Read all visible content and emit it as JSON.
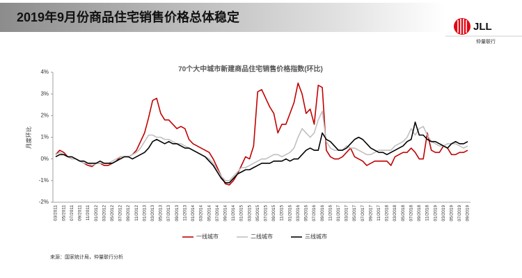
{
  "header": {
    "title": "2019年9月份商品住宅销售价格总体稳定",
    "logo": "JLL",
    "logo_sub": "仲量联行"
  },
  "source": "来源：国家统计局，仲量联行分析",
  "chart_data": {
    "type": "line",
    "title": "70个大中城市新建商品住宅销售价格指数(环比)",
    "y_label": "月度环比",
    "categories": [
      "03/2011",
      null,
      "05/2011",
      null,
      "07/2011",
      null,
      "09/2011",
      null,
      "11/2011",
      null,
      "01/2012",
      null,
      "03/2012",
      null,
      "05/2012",
      null,
      "07/2012",
      null,
      "09/2012",
      null,
      "11/2012",
      null,
      "01/2013",
      null,
      "03/2013",
      null,
      "05/2013",
      null,
      "07/2013",
      null,
      "09/2013",
      null,
      "11/2013",
      null,
      "01/2014",
      null,
      "03/2014",
      null,
      "05/2014",
      null,
      "07/2014",
      null,
      "09/2014",
      null,
      "11/2014",
      null,
      "01/2015",
      null,
      "03/2015",
      null,
      "05/2015",
      null,
      "07/2015",
      null,
      "09/2015",
      null,
      "11/2015",
      null,
      "01/2016",
      null,
      "03/2016",
      null,
      "05/2016",
      null,
      "07/2016",
      null,
      "09/2016",
      null,
      "11/2016",
      null,
      "01/2017",
      null,
      "03/2017",
      null,
      "05/2017",
      null,
      "07/2017",
      null,
      "09/2017",
      null,
      "11/2017",
      null,
      "01/2018",
      null,
      "03/2018",
      null,
      "05/2018",
      null,
      "07/2018",
      null,
      "09/2018",
      null,
      "11/2018",
      null,
      "01/2019",
      null,
      "03/2019",
      null,
      "05/2019",
      null,
      "07/2019",
      null,
      "09/2019"
    ],
    "series": [
      {
        "name": "一线城市",
        "color": "#c00000",
        "values": [
          0.2,
          0.4,
          0.3,
          0.1,
          0.0,
          0.0,
          -0.1,
          -0.2,
          -0.3,
          -0.35,
          -0.2,
          -0.2,
          -0.3,
          -0.3,
          -0.2,
          -0.1,
          0.1,
          0.1,
          0.1,
          0.2,
          0.4,
          0.8,
          1.2,
          1.9,
          2.7,
          2.8,
          2.1,
          1.8,
          1.8,
          1.6,
          1.4,
          1.5,
          1.4,
          0.9,
          0.7,
          0.6,
          0.5,
          0.4,
          0.3,
          0.0,
          -0.4,
          -0.8,
          -1.15,
          -1.2,
          -1.0,
          -0.7,
          -0.3,
          0.1,
          0.0,
          0.6,
          3.1,
          3.2,
          2.8,
          2.4,
          2.1,
          1.2,
          1.6,
          1.6,
          2.1,
          2.6,
          3.5,
          3.0,
          2.1,
          2.3,
          1.6,
          3.4,
          3.3,
          0.4,
          0.1,
          0.0,
          0.0,
          0.1,
          0.3,
          0.5,
          0.1,
          0.0,
          -0.1,
          -0.3,
          -0.2,
          -0.1,
          -0.1,
          -0.1,
          -0.1,
          -0.3,
          0.1,
          0.2,
          0.3,
          0.3,
          0.5,
          0.3,
          0.0,
          0.0,
          1.2,
          0.4,
          0.3,
          0.3,
          0.6,
          0.5,
          0.2,
          0.2,
          0.3,
          0.3,
          0.4
        ]
      },
      {
        "name": "二线城市",
        "color": "#bfbfbf",
        "values": [
          0.2,
          0.3,
          0.2,
          0.1,
          0.0,
          0.0,
          -0.1,
          -0.2,
          -0.2,
          -0.3,
          -0.2,
          -0.2,
          -0.2,
          -0.2,
          -0.1,
          0.0,
          0.1,
          0.1,
          0.1,
          0.2,
          0.3,
          0.5,
          0.8,
          1.1,
          1.1,
          1.0,
          1.0,
          0.9,
          0.9,
          0.8,
          0.7,
          0.7,
          0.6,
          0.5,
          0.4,
          0.3,
          0.2,
          0.1,
          0.0,
          -0.2,
          -0.5,
          -0.8,
          -1.0,
          -1.0,
          -0.8,
          -0.6,
          -0.4,
          -0.4,
          -0.3,
          -0.2,
          -0.1,
          0.0,
          0.0,
          0.1,
          0.2,
          0.2,
          0.1,
          0.2,
          0.3,
          0.5,
          1.0,
          1.4,
          1.2,
          1.0,
          1.2,
          1.8,
          2.2,
          0.8,
          0.5,
          0.4,
          0.4,
          0.4,
          0.6,
          0.5,
          0.5,
          0.4,
          0.3,
          0.2,
          0.2,
          0.3,
          0.4,
          0.4,
          0.4,
          0.4,
          0.6,
          0.7,
          0.8,
          1.0,
          1.4,
          1.1,
          1.4,
          1.5,
          1.1,
          0.8,
          0.7,
          0.6,
          0.6,
          0.7,
          0.7,
          0.7,
          0.6,
          0.5,
          0.6
        ]
      },
      {
        "name": "三线城市",
        "color": "#000000",
        "values": [
          0.1,
          0.2,
          0.2,
          0.1,
          0.1,
          0.0,
          -0.1,
          -0.1,
          -0.2,
          -0.2,
          -0.2,
          -0.1,
          -0.2,
          -0.2,
          -0.2,
          -0.1,
          0.0,
          0.1,
          0.1,
          0.0,
          0.1,
          0.2,
          0.3,
          0.5,
          0.8,
          0.9,
          0.8,
          0.7,
          0.8,
          0.7,
          0.7,
          0.6,
          0.5,
          0.5,
          0.4,
          0.3,
          0.2,
          0.1,
          -0.1,
          -0.3,
          -0.6,
          -0.9,
          -1.1,
          -1.1,
          -0.9,
          -0.7,
          -0.6,
          -0.5,
          -0.5,
          -0.4,
          -0.3,
          -0.2,
          -0.2,
          -0.2,
          -0.1,
          -0.1,
          -0.1,
          0.0,
          -0.1,
          0.0,
          0.0,
          0.2,
          0.4,
          0.5,
          0.4,
          0.4,
          1.2,
          0.9,
          0.8,
          0.6,
          0.4,
          0.4,
          0.5,
          0.7,
          0.9,
          1.0,
          0.9,
          0.7,
          0.5,
          0.4,
          0.3,
          0.3,
          0.2,
          0.3,
          0.4,
          0.5,
          0.6,
          0.8,
          0.9,
          1.7,
          1.1,
          1.1,
          0.9,
          0.8,
          0.8,
          0.7,
          0.6,
          0.5,
          0.7,
          0.8,
          0.7,
          0.7,
          0.8
        ]
      }
    ],
    "ylim": [
      -2,
      4
    ],
    "yticks": [
      {
        "value": -2,
        "label": "-2%"
      },
      {
        "value": -1,
        "label": "-1%"
      },
      {
        "value": 0,
        "label": "0%"
      },
      {
        "value": 1,
        "label": "1%"
      },
      {
        "value": 2,
        "label": "2%"
      },
      {
        "value": 3,
        "label": "3%"
      },
      {
        "value": 4,
        "label": "4%"
      }
    ],
    "grid": false
  }
}
